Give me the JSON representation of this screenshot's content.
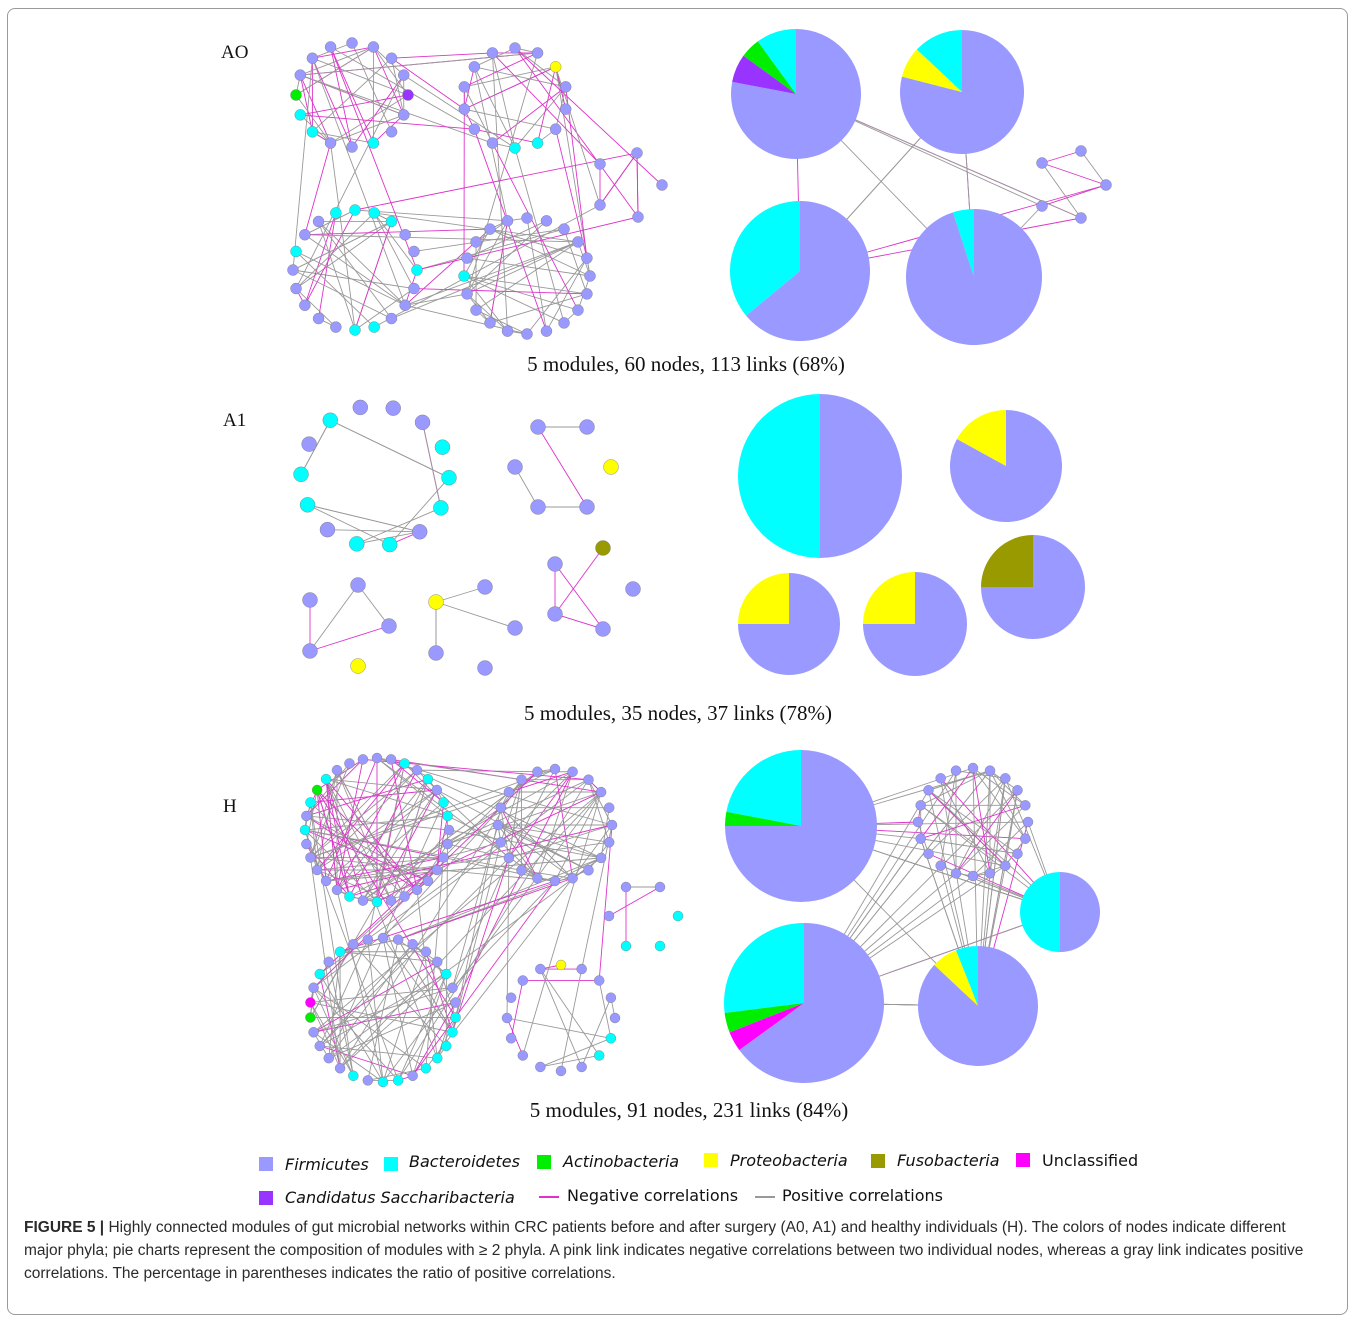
{
  "panels": [
    {
      "label": "AO",
      "summary": "5 modules, 60 nodes, 113 links (68%)"
    },
    {
      "label": "A1",
      "summary": "5 modules, 35 nodes, 37 links (78%)"
    },
    {
      "label": "H",
      "summary": "5 modules, 91 nodes, 231 links (84%)"
    }
  ],
  "legend": {
    "items": [
      {
        "label": "Firmicutes",
        "color": "#9999ff",
        "italic": true
      },
      {
        "label": "Bacteroidetes",
        "color": "#00ffff",
        "italic": true
      },
      {
        "label": "Actinobacteria",
        "color": "#00ee00",
        "italic": true
      },
      {
        "label": "Proteobacteria",
        "color": "#ffff00",
        "italic": true
      },
      {
        "label": "Fusobacteria",
        "color": "#999900",
        "italic": true
      },
      {
        "label": "Unclassified",
        "color": "#ff00ff",
        "italic": false
      },
      {
        "label": "Candidatus Saccharibacteria",
        "color": "#9933ff",
        "italic": true
      }
    ],
    "lines": [
      {
        "label": "Negative correlations",
        "color": "#dd33cc"
      },
      {
        "label": "Positive correlations",
        "color": "#999999"
      }
    ]
  },
  "caption": {
    "fig_id": "FIGURE 5 |",
    "text": " Highly connected modules of gut microbial networks within CRC patients before and after surgery (A0, A1) and healthy individuals (H). The colors of nodes indicate different major phyla; pie charts represent the composition of modules with ≥ 2 phyla. A pink link indicates negative correlations between two individual nodes, whereas a gray link indicates positive correlations. The percentage in parentheses indicates the ratio of positive correlations."
  },
  "colors": {
    "firmicutes": "#9999ff",
    "bacteroidetes": "#00ffff",
    "actinobacteria": "#00ee00",
    "proteobacteria": "#ffff00",
    "fusobacteria": "#999900",
    "unclassified": "#ff00ff",
    "saccharibacteria": "#9933ff",
    "negative": "#dd33cc",
    "positive": "#999999"
  },
  "pies": {
    "A0": [
      {
        "slices": [
          {
            "phylum": "Firmicutes",
            "value": 0.78
          },
          {
            "phylum": "Bacteroidetes",
            "value": 0.1
          },
          {
            "phylum": "Actinobacteria",
            "value": 0.05
          },
          {
            "phylum": "Candidatus Saccharibacteria",
            "value": 0.07
          }
        ]
      },
      {
        "slices": [
          {
            "phylum": "Firmicutes",
            "value": 0.79
          },
          {
            "phylum": "Bacteroidetes",
            "value": 0.13
          },
          {
            "phylum": "Proteobacteria",
            "value": 0.08
          }
        ]
      },
      {
        "slices": [
          {
            "phylum": "Firmicutes",
            "value": 0.64
          },
          {
            "phylum": "Bacteroidetes",
            "value": 0.36
          }
        ]
      },
      {
        "slices": [
          {
            "phylum": "Firmicutes",
            "value": 0.95
          },
          {
            "phylum": "Bacteroidetes",
            "value": 0.05
          }
        ]
      }
    ],
    "A1": [
      {
        "slices": [
          {
            "phylum": "Firmicutes",
            "value": 0.5
          },
          {
            "phylum": "Bacteroidetes",
            "value": 0.5
          }
        ]
      },
      {
        "slices": [
          {
            "phylum": "Firmicutes",
            "value": 0.83
          },
          {
            "phylum": "Proteobacteria",
            "value": 0.17
          }
        ]
      },
      {
        "slices": [
          {
            "phylum": "Firmicutes",
            "value": 0.75
          },
          {
            "phylum": "Proteobacteria",
            "value": 0.25
          }
        ]
      },
      {
        "slices": [
          {
            "phylum": "Firmicutes",
            "value": 0.75
          },
          {
            "phylum": "Proteobacteria",
            "value": 0.25
          }
        ]
      },
      {
        "slices": [
          {
            "phylum": "Firmicutes",
            "value": 0.75
          },
          {
            "phylum": "Fusobacteria",
            "value": 0.25
          }
        ]
      }
    ],
    "H": [
      {
        "slices": [
          {
            "phylum": "Firmicutes",
            "value": 0.75
          },
          {
            "phylum": "Bacteroidetes",
            "value": 0.22
          },
          {
            "phylum": "Actinobacteria",
            "value": 0.03
          }
        ]
      },
      {
        "slices": [
          {
            "phylum": "Firmicutes",
            "value": 0.5
          },
          {
            "phylum": "Bacteroidetes",
            "value": 0.5
          }
        ]
      },
      {
        "slices": [
          {
            "phylum": "Firmicutes",
            "value": 0.65
          },
          {
            "phylum": "Bacteroidetes",
            "value": 0.27
          },
          {
            "phylum": "Actinobacteria",
            "value": 0.04
          },
          {
            "phylum": "Unclassified",
            "value": 0.04
          }
        ]
      },
      {
        "slices": [
          {
            "phylum": "Firmicutes",
            "value": 0.87
          },
          {
            "phylum": "Bacteroidetes",
            "value": 0.06
          },
          {
            "phylum": "Proteobacteria",
            "value": 0.07
          }
        ]
      }
    ]
  }
}
